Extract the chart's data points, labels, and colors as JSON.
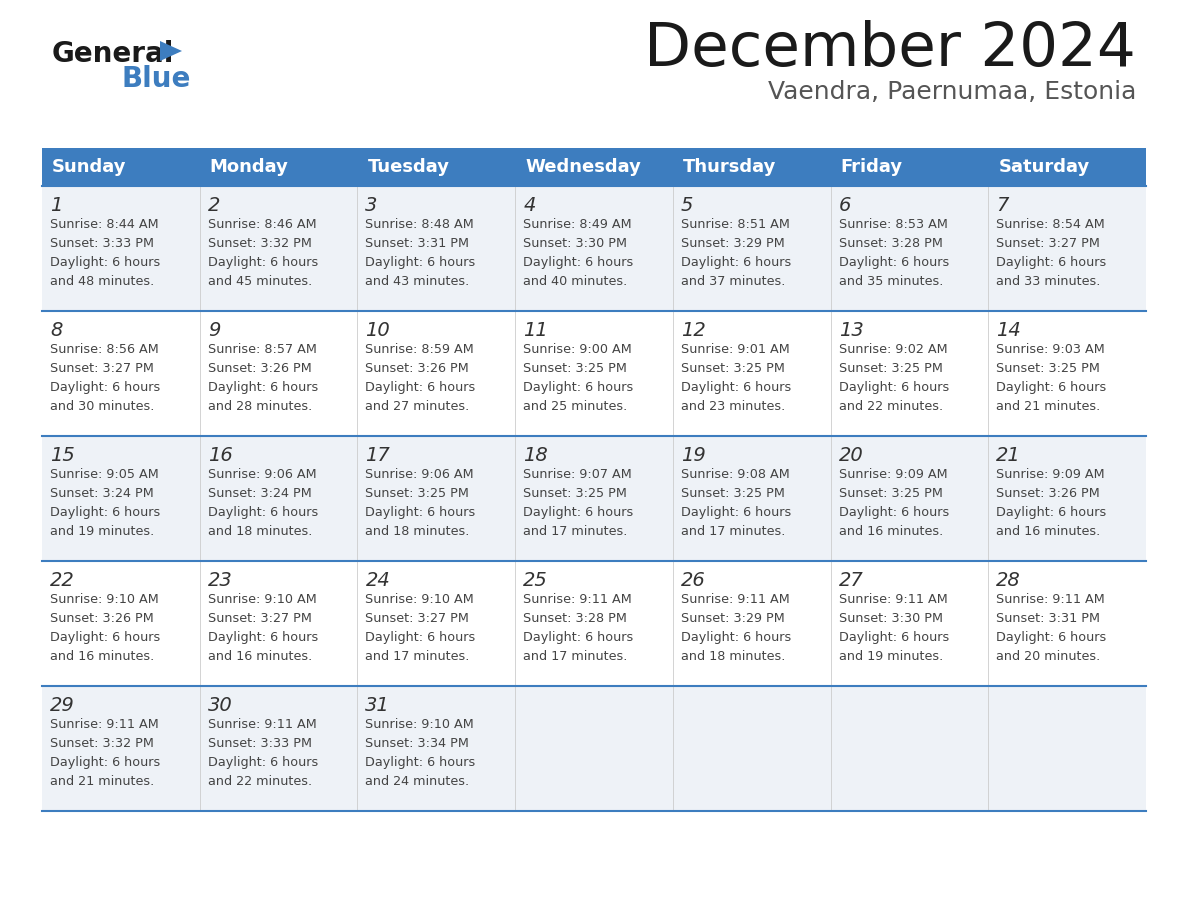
{
  "title": "December 2024",
  "subtitle": "Vaendra, Paernumaa, Estonia",
  "header_bg_color": "#3d7dbf",
  "header_text_color": "#ffffff",
  "row_bg_even": "#eef2f7",
  "row_bg_odd": "#ffffff",
  "border_color": "#3d7dbf",
  "text_color": "#444444",
  "days_of_week": [
    "Sunday",
    "Monday",
    "Tuesday",
    "Wednesday",
    "Thursday",
    "Friday",
    "Saturday"
  ],
  "calendar_data": [
    [
      {
        "day": "1",
        "sunrise": "8:44 AM",
        "sunset": "3:33 PM",
        "daylight_h": "6 hours",
        "daylight_m": "and 48 minutes."
      },
      {
        "day": "2",
        "sunrise": "8:46 AM",
        "sunset": "3:32 PM",
        "daylight_h": "6 hours",
        "daylight_m": "and 45 minutes."
      },
      {
        "day": "3",
        "sunrise": "8:48 AM",
        "sunset": "3:31 PM",
        "daylight_h": "6 hours",
        "daylight_m": "and 43 minutes."
      },
      {
        "day": "4",
        "sunrise": "8:49 AM",
        "sunset": "3:30 PM",
        "daylight_h": "6 hours",
        "daylight_m": "and 40 minutes."
      },
      {
        "day": "5",
        "sunrise": "8:51 AM",
        "sunset": "3:29 PM",
        "daylight_h": "6 hours",
        "daylight_m": "and 37 minutes."
      },
      {
        "day": "6",
        "sunrise": "8:53 AM",
        "sunset": "3:28 PM",
        "daylight_h": "6 hours",
        "daylight_m": "and 35 minutes."
      },
      {
        "day": "7",
        "sunrise": "8:54 AM",
        "sunset": "3:27 PM",
        "daylight_h": "6 hours",
        "daylight_m": "and 33 minutes."
      }
    ],
    [
      {
        "day": "8",
        "sunrise": "8:56 AM",
        "sunset": "3:27 PM",
        "daylight_h": "6 hours",
        "daylight_m": "and 30 minutes."
      },
      {
        "day": "9",
        "sunrise": "8:57 AM",
        "sunset": "3:26 PM",
        "daylight_h": "6 hours",
        "daylight_m": "and 28 minutes."
      },
      {
        "day": "10",
        "sunrise": "8:59 AM",
        "sunset": "3:26 PM",
        "daylight_h": "6 hours",
        "daylight_m": "and 27 minutes."
      },
      {
        "day": "11",
        "sunrise": "9:00 AM",
        "sunset": "3:25 PM",
        "daylight_h": "6 hours",
        "daylight_m": "and 25 minutes."
      },
      {
        "day": "12",
        "sunrise": "9:01 AM",
        "sunset": "3:25 PM",
        "daylight_h": "6 hours",
        "daylight_m": "and 23 minutes."
      },
      {
        "day": "13",
        "sunrise": "9:02 AM",
        "sunset": "3:25 PM",
        "daylight_h": "6 hours",
        "daylight_m": "and 22 minutes."
      },
      {
        "day": "14",
        "sunrise": "9:03 AM",
        "sunset": "3:25 PM",
        "daylight_h": "6 hours",
        "daylight_m": "and 21 minutes."
      }
    ],
    [
      {
        "day": "15",
        "sunrise": "9:05 AM",
        "sunset": "3:24 PM",
        "daylight_h": "6 hours",
        "daylight_m": "and 19 minutes."
      },
      {
        "day": "16",
        "sunrise": "9:06 AM",
        "sunset": "3:24 PM",
        "daylight_h": "6 hours",
        "daylight_m": "and 18 minutes."
      },
      {
        "day": "17",
        "sunrise": "9:06 AM",
        "sunset": "3:25 PM",
        "daylight_h": "6 hours",
        "daylight_m": "and 18 minutes."
      },
      {
        "day": "18",
        "sunrise": "9:07 AM",
        "sunset": "3:25 PM",
        "daylight_h": "6 hours",
        "daylight_m": "and 17 minutes."
      },
      {
        "day": "19",
        "sunrise": "9:08 AM",
        "sunset": "3:25 PM",
        "daylight_h": "6 hours",
        "daylight_m": "and 17 minutes."
      },
      {
        "day": "20",
        "sunrise": "9:09 AM",
        "sunset": "3:25 PM",
        "daylight_h": "6 hours",
        "daylight_m": "and 16 minutes."
      },
      {
        "day": "21",
        "sunrise": "9:09 AM",
        "sunset": "3:26 PM",
        "daylight_h": "6 hours",
        "daylight_m": "and 16 minutes."
      }
    ],
    [
      {
        "day": "22",
        "sunrise": "9:10 AM",
        "sunset": "3:26 PM",
        "daylight_h": "6 hours",
        "daylight_m": "and 16 minutes."
      },
      {
        "day": "23",
        "sunrise": "9:10 AM",
        "sunset": "3:27 PM",
        "daylight_h": "6 hours",
        "daylight_m": "and 16 minutes."
      },
      {
        "day": "24",
        "sunrise": "9:10 AM",
        "sunset": "3:27 PM",
        "daylight_h": "6 hours",
        "daylight_m": "and 17 minutes."
      },
      {
        "day": "25",
        "sunrise": "9:11 AM",
        "sunset": "3:28 PM",
        "daylight_h": "6 hours",
        "daylight_m": "and 17 minutes."
      },
      {
        "day": "26",
        "sunrise": "9:11 AM",
        "sunset": "3:29 PM",
        "daylight_h": "6 hours",
        "daylight_m": "and 18 minutes."
      },
      {
        "day": "27",
        "sunrise": "9:11 AM",
        "sunset": "3:30 PM",
        "daylight_h": "6 hours",
        "daylight_m": "and 19 minutes."
      },
      {
        "day": "28",
        "sunrise": "9:11 AM",
        "sunset": "3:31 PM",
        "daylight_h": "6 hours",
        "daylight_m": "and 20 minutes."
      }
    ],
    [
      {
        "day": "29",
        "sunrise": "9:11 AM",
        "sunset": "3:32 PM",
        "daylight_h": "6 hours",
        "daylight_m": "and 21 minutes."
      },
      {
        "day": "30",
        "sunrise": "9:11 AM",
        "sunset": "3:33 PM",
        "daylight_h": "6 hours",
        "daylight_m": "and 22 minutes."
      },
      {
        "day": "31",
        "sunrise": "9:10 AM",
        "sunset": "3:34 PM",
        "daylight_h": "6 hours",
        "daylight_m": "and 24 minutes."
      },
      null,
      null,
      null,
      null
    ]
  ]
}
